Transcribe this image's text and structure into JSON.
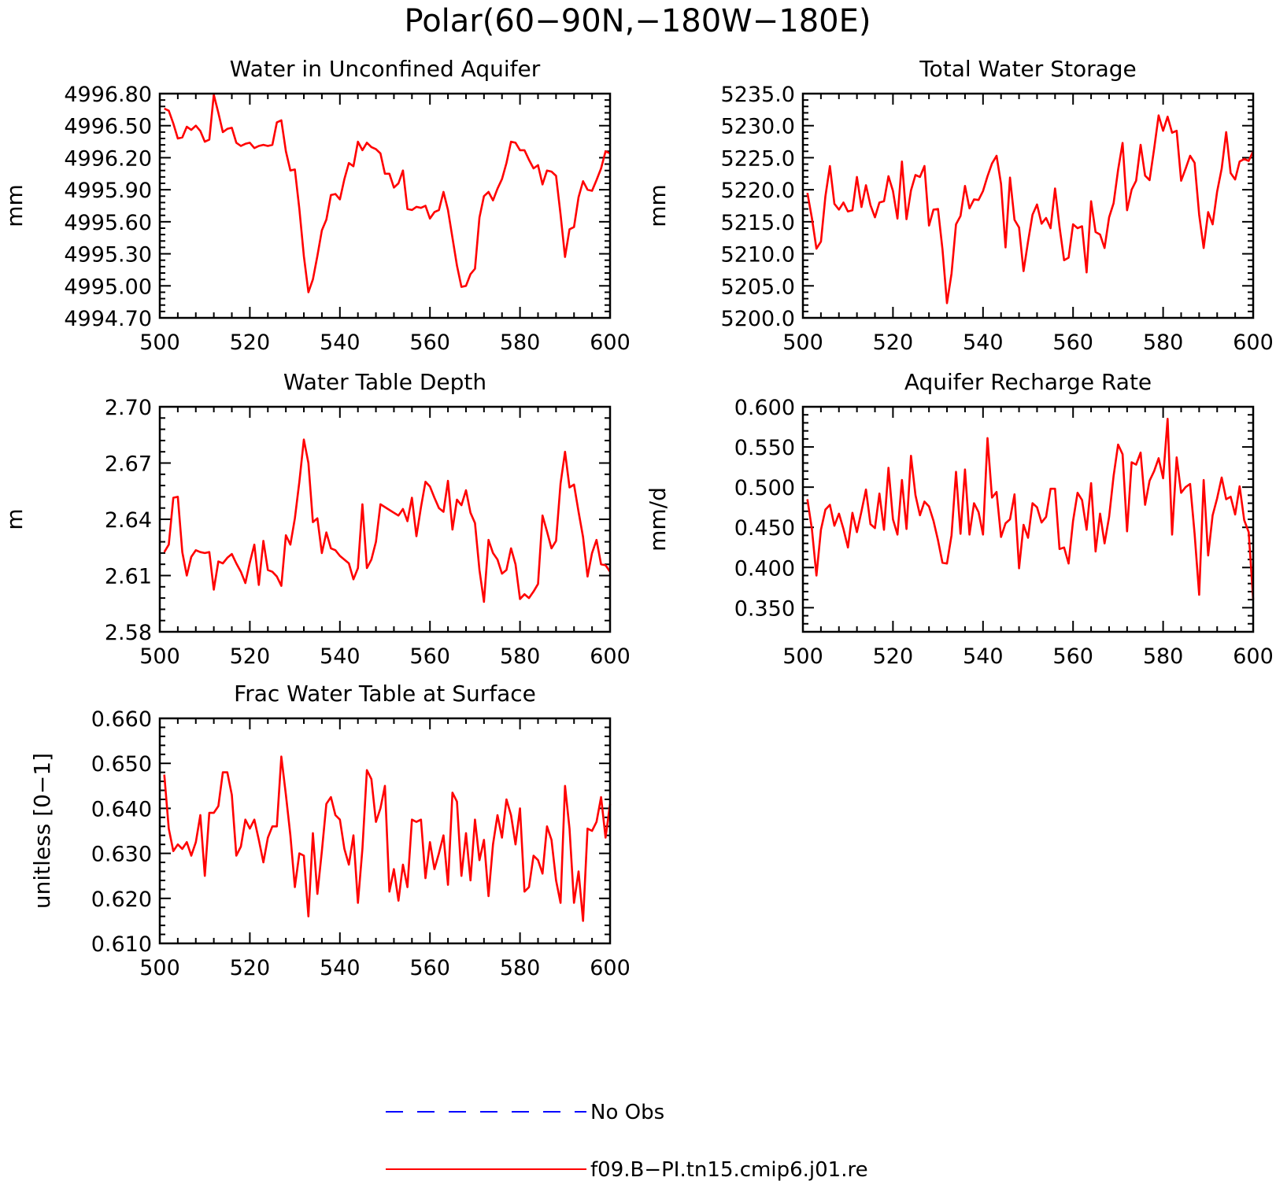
{
  "figure": {
    "title": "Polar(60−90N,−180W−180E)",
    "legend": [
      {
        "label": "No Obs",
        "color": "#0000ff",
        "style": "dashed"
      },
      {
        "label": "f09.B−PI.tn15.cmip6.j01.re",
        "color": "#ff0000",
        "style": "solid"
      }
    ]
  },
  "chart_data": [
    {
      "type": "line",
      "title": "Water in Unconfined Aquifer",
      "ylabel": "mm",
      "xlim": [
        500,
        600
      ],
      "ylim": [
        4994.7,
        4996.8
      ],
      "xticks": [
        "500",
        "520",
        "540",
        "560",
        "580",
        "600"
      ],
      "yticks": [
        "4994.70",
        "4995.00",
        "4995.30",
        "4995.60",
        "4995.90",
        "4996.20",
        "4996.50",
        "4996.80"
      ],
      "series": [
        {
          "color": "#ff0000",
          "x0": 501,
          "dx": 1,
          "values": [
            4996.66,
            4996.64,
            4996.52,
            4996.38,
            4996.39,
            4996.49,
            4996.46,
            4996.5,
            4996.45,
            4996.35,
            4996.37,
            4996.79,
            4996.62,
            4996.44,
            4996.47,
            4996.48,
            4996.34,
            4996.31,
            4996.33,
            4996.34,
            4996.29,
            4996.31,
            4996.32,
            4996.31,
            4996.32,
            4996.53,
            4996.55,
            4996.26,
            4996.08,
            4996.09,
            4995.72,
            4995.28,
            4994.94,
            4995.06,
            4995.28,
            4995.52,
            4995.62,
            4995.85,
            4995.86,
            4995.81,
            4996.0,
            4996.15,
            4996.12,
            4996.35,
            4996.27,
            4996.34,
            4996.3,
            4996.28,
            4996.24,
            4996.05,
            4996.05,
            4995.92,
            4995.96,
            4996.08,
            4995.72,
            4995.71,
            4995.74,
            4995.73,
            4995.75,
            4995.63,
            4995.69,
            4995.71,
            4995.88,
            4995.71,
            4995.45,
            4995.19,
            4994.99,
            4995.0,
            4995.11,
            4995.16,
            4995.64,
            4995.84,
            4995.88,
            4995.8,
            4995.91,
            4996.0,
            4996.15,
            4996.35,
            4996.34,
            4996.27,
            4996.27,
            4996.18,
            4996.1,
            4996.13,
            4995.95,
            4996.08,
            4996.07,
            4996.03,
            4995.67,
            4995.27,
            4995.53,
            4995.55,
            4995.83,
            4995.98,
            4995.9,
            4995.89,
            4995.99,
            4996.1,
            4996.26,
            4996.24
          ]
        }
      ]
    },
    {
      "type": "line",
      "title": "Total Water Storage",
      "ylabel": "mm",
      "xlim": [
        500,
        600
      ],
      "ylim": [
        5200,
        5235
      ],
      "xticks": [
        "500",
        "520",
        "540",
        "560",
        "580",
        "600"
      ],
      "yticks": [
        "5200.0",
        "5205.0",
        "5210.0",
        "5215.0",
        "5220.0",
        "5225.0",
        "5230.0",
        "5235.0"
      ],
      "series": [
        {
          "color": "#ff0000",
          "x0": 501,
          "dx": 1,
          "values": [
            5219.5,
            5215.6,
            5210.8,
            5211.9,
            5219.0,
            5223.7,
            5217.8,
            5216.9,
            5218.0,
            5216.6,
            5216.8,
            5222.0,
            5217.3,
            5220.7,
            5217.6,
            5215.7,
            5218.0,
            5218.2,
            5222.1,
            5219.8,
            5215.5,
            5224.4,
            5215.4,
            5219.9,
            5222.3,
            5222.0,
            5223.7,
            5214.4,
            5216.9,
            5217.0,
            5210.7,
            5202.3,
            5206.9,
            5214.6,
            5215.9,
            5220.6,
            5217.1,
            5218.5,
            5218.4,
            5219.8,
            5222.1,
            5224.1,
            5225.3,
            5220.9,
            5211.0,
            5221.9,
            5215.3,
            5214.1,
            5207.3,
            5211.9,
            5216.1,
            5217.7,
            5214.7,
            5215.6,
            5214.0,
            5220.2,
            5214.2,
            5209.0,
            5209.4,
            5214.6,
            5214.0,
            5214.3,
            5207.1,
            5218.2,
            5213.4,
            5213.0,
            5210.9,
            5215.7,
            5217.9,
            5223.1,
            5227.3,
            5216.8,
            5220.0,
            5221.4,
            5227.0,
            5222.2,
            5221.5,
            5226.4,
            5231.6,
            5229.2,
            5231.4,
            5228.9,
            5229.2,
            5221.4,
            5223.3,
            5225.3,
            5224.2,
            5216.1,
            5210.9,
            5216.5,
            5214.6,
            5219.7,
            5223.3,
            5229.0,
            5222.6,
            5221.6,
            5224.4,
            5224.8,
            5224.5,
            5226.0
          ]
        }
      ]
    },
    {
      "type": "line",
      "title": "Water Table Depth",
      "ylabel": "m",
      "xlim": [
        500,
        600
      ],
      "ylim": [
        2.58,
        2.7
      ],
      "xticks": [
        "500",
        "520",
        "540",
        "560",
        "580",
        "600"
      ],
      "yticks": [
        "2.58",
        "2.61",
        "2.64",
        "2.67",
        "2.70"
      ],
      "series": [
        {
          "color": "#ff0000",
          "x0": 501,
          "dx": 1,
          "values": [
            2.6225,
            2.6265,
            2.6515,
            2.652,
            2.6225,
            2.61,
            2.62,
            2.6235,
            2.6225,
            2.622,
            2.6225,
            2.6025,
            2.6175,
            2.6165,
            2.6195,
            2.6215,
            2.6165,
            2.612,
            2.606,
            2.617,
            2.6265,
            2.605,
            2.6285,
            2.613,
            2.612,
            2.6095,
            2.6045,
            2.6315,
            2.6265,
            2.6405,
            2.66,
            2.6825,
            2.67,
            2.6385,
            2.6405,
            2.622,
            2.633,
            2.6245,
            2.6235,
            2.6205,
            2.6185,
            2.6165,
            2.608,
            2.614,
            2.648,
            2.614,
            2.6185,
            2.628,
            2.648,
            2.6465,
            2.645,
            2.6435,
            2.642,
            2.6455,
            2.639,
            2.6515,
            2.631,
            2.6465,
            2.66,
            2.6575,
            2.6515,
            2.646,
            2.644,
            2.6605,
            2.6345,
            2.6505,
            2.6475,
            2.6555,
            2.6435,
            2.638,
            2.613,
            2.596,
            2.629,
            2.622,
            2.6185,
            2.611,
            2.613,
            2.6245,
            2.616,
            2.5975,
            2.6,
            2.598,
            2.6015,
            2.6055,
            2.642,
            2.6335,
            2.6245,
            2.6285,
            2.659,
            2.676,
            2.657,
            2.6585,
            2.644,
            2.6305,
            2.6095,
            2.622,
            2.629,
            2.616,
            2.6155,
            2.612
          ]
        }
      ]
    },
    {
      "type": "line",
      "title": "Aquifer Recharge Rate",
      "ylabel": "mm/d",
      "xlim": [
        500,
        600
      ],
      "ylim": [
        0.32,
        0.6
      ],
      "xticks": [
        "500",
        "520",
        "540",
        "560",
        "580",
        "600"
      ],
      "yticks": [
        "0.350",
        "0.400",
        "0.450",
        "0.500",
        "0.550",
        "0.600"
      ],
      "series": [
        {
          "color": "#ff0000",
          "x0": 501,
          "dx": 1,
          "values": [
            0.485,
            0.448,
            0.39,
            0.447,
            0.472,
            0.478,
            0.452,
            0.467,
            0.448,
            0.425,
            0.468,
            0.444,
            0.47,
            0.497,
            0.454,
            0.449,
            0.492,
            0.447,
            0.524,
            0.46,
            0.441,
            0.509,
            0.448,
            0.539,
            0.49,
            0.465,
            0.482,
            0.476,
            0.458,
            0.434,
            0.406,
            0.405,
            0.44,
            0.519,
            0.442,
            0.522,
            0.441,
            0.48,
            0.469,
            0.441,
            0.561,
            0.487,
            0.494,
            0.438,
            0.455,
            0.46,
            0.491,
            0.399,
            0.453,
            0.437,
            0.48,
            0.475,
            0.456,
            0.463,
            0.498,
            0.498,
            0.423,
            0.425,
            0.405,
            0.458,
            0.493,
            0.484,
            0.447,
            0.505,
            0.42,
            0.467,
            0.43,
            0.463,
            0.514,
            0.553,
            0.541,
            0.445,
            0.531,
            0.528,
            0.543,
            0.478,
            0.508,
            0.52,
            0.536,
            0.511,
            0.585,
            0.441,
            0.537,
            0.493,
            0.5,
            0.504,
            0.442,
            0.366,
            0.509,
            0.415,
            0.465,
            0.486,
            0.512,
            0.485,
            0.488,
            0.466,
            0.501,
            0.459,
            0.444,
            0.36
          ]
        }
      ]
    },
    {
      "type": "line",
      "title": "Frac Water Table at Surface",
      "ylabel": "unitless [0−1]",
      "xlim": [
        500,
        600
      ],
      "ylim": [
        0.61,
        0.66
      ],
      "xticks": [
        "500",
        "520",
        "540",
        "560",
        "580",
        "600"
      ],
      "yticks": [
        "0.610",
        "0.620",
        "0.630",
        "0.640",
        "0.650",
        "0.660"
      ],
      "series": [
        {
          "color": "#ff0000",
          "x0": 501,
          "dx": 1,
          "values": [
            0.6475,
            0.6355,
            0.6305,
            0.632,
            0.631,
            0.6325,
            0.6295,
            0.6325,
            0.6385,
            0.625,
            0.639,
            0.639,
            0.6405,
            0.648,
            0.648,
            0.643,
            0.6295,
            0.6315,
            0.6375,
            0.6355,
            0.6375,
            0.633,
            0.628,
            0.6335,
            0.636,
            0.636,
            0.6515,
            0.643,
            0.634,
            0.6225,
            0.63,
            0.6295,
            0.616,
            0.6345,
            0.621,
            0.6305,
            0.641,
            0.6425,
            0.6385,
            0.6375,
            0.631,
            0.6275,
            0.634,
            0.619,
            0.631,
            0.6485,
            0.6465,
            0.637,
            0.64,
            0.645,
            0.6215,
            0.6265,
            0.6195,
            0.6275,
            0.6225,
            0.6375,
            0.637,
            0.6375,
            0.6245,
            0.6325,
            0.6265,
            0.63,
            0.634,
            0.623,
            0.6435,
            0.6415,
            0.625,
            0.6345,
            0.624,
            0.6375,
            0.6285,
            0.633,
            0.6205,
            0.632,
            0.6385,
            0.6335,
            0.642,
            0.6385,
            0.632,
            0.64,
            0.6215,
            0.6225,
            0.6295,
            0.6285,
            0.6255,
            0.636,
            0.633,
            0.624,
            0.619,
            0.645,
            0.6355,
            0.619,
            0.626,
            0.615,
            0.6355,
            0.635,
            0.637,
            0.6425,
            0.6335,
            0.641
          ]
        }
      ]
    }
  ]
}
